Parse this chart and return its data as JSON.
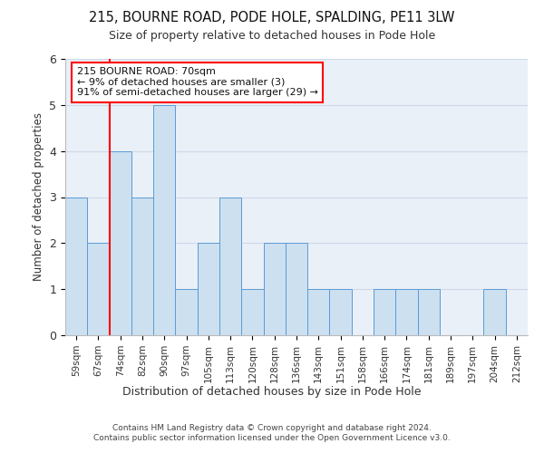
{
  "title1": "215, BOURNE ROAD, PODE HOLE, SPALDING, PE11 3LW",
  "title2": "Size of property relative to detached houses in Pode Hole",
  "xlabel": "Distribution of detached houses by size in Pode Hole",
  "ylabel": "Number of detached properties",
  "footer1": "Contains HM Land Registry data © Crown copyright and database right 2024.",
  "footer2": "Contains public sector information licensed under the Open Government Licence v3.0.",
  "annotation_title": "215 BOURNE ROAD: 70sqm",
  "annotation_line1": "← 9% of detached houses are smaller (3)",
  "annotation_line2": "91% of semi-detached houses are larger (29) →",
  "bar_labels": [
    "59sqm",
    "67sqm",
    "74sqm",
    "82sqm",
    "90sqm",
    "97sqm",
    "105sqm",
    "113sqm",
    "120sqm",
    "128sqm",
    "136sqm",
    "143sqm",
    "151sqm",
    "158sqm",
    "166sqm",
    "174sqm",
    "181sqm",
    "189sqm",
    "197sqm",
    "204sqm",
    "212sqm"
  ],
  "bar_values": [
    3,
    2,
    4,
    3,
    5,
    1,
    2,
    3,
    1,
    2,
    2,
    1,
    1,
    0,
    1,
    1,
    1,
    0,
    0,
    1,
    0
  ],
  "bar_color": "#cce0f0",
  "bar_edge_color": "#5b9bd5",
  "red_line_x": 1.5,
  "ylim": [
    0,
    6
  ],
  "yticks": [
    0,
    1,
    2,
    3,
    4,
    5,
    6
  ],
  "grid_color": "#d0d8e8",
  "bg_color": "#eaf0f8"
}
